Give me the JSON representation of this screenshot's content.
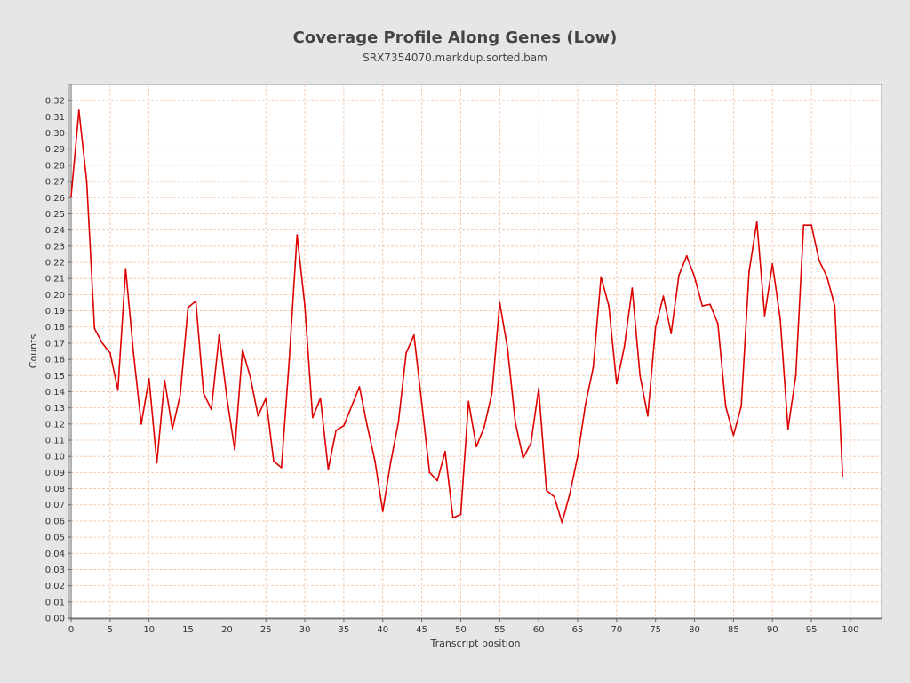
{
  "chart_data": {
    "type": "line",
    "title": "Coverage Profile Along Genes (Low)",
    "subtitle": "SRX7354070.markdup.sorted.bam",
    "xlabel": "Transcript position",
    "ylabel": "Counts",
    "xlim": [
      0,
      104
    ],
    "ylim": [
      0,
      0.33
    ],
    "x_ticks": [
      0,
      5,
      10,
      15,
      20,
      25,
      30,
      35,
      40,
      45,
      50,
      55,
      60,
      65,
      70,
      75,
      80,
      85,
      90,
      95,
      100
    ],
    "y_ticks": [
      "0.00",
      "0.01",
      "0.02",
      "0.03",
      "0.04",
      "0.05",
      "0.06",
      "0.07",
      "0.08",
      "0.09",
      "0.10",
      "0.11",
      "0.12",
      "0.13",
      "0.14",
      "0.15",
      "0.16",
      "0.17",
      "0.18",
      "0.19",
      "0.20",
      "0.21",
      "0.22",
      "0.23",
      "0.24",
      "0.25",
      "0.26",
      "0.27",
      "0.28",
      "0.29",
      "0.30",
      "0.31",
      "0.32"
    ],
    "grid": true,
    "series": [
      {
        "color": "#dd0000",
        "x": [
          0,
          1,
          2,
          3,
          4,
          5,
          6,
          7,
          8,
          9,
          10,
          11,
          12,
          13,
          14,
          15,
          16,
          17,
          18,
          19,
          20,
          21,
          22,
          23,
          24,
          25,
          26,
          27,
          28,
          29,
          30,
          31,
          32,
          33,
          34,
          35,
          36,
          37,
          38,
          39,
          40,
          41,
          42,
          43,
          44,
          45,
          46,
          47,
          48,
          49,
          50,
          51,
          52,
          53,
          54,
          55,
          56,
          57,
          58,
          59,
          60,
          61,
          62,
          63,
          64,
          65,
          66,
          67,
          68,
          69,
          70,
          71,
          72,
          73,
          74,
          75,
          76,
          77,
          78,
          79,
          80,
          81,
          82,
          83,
          84,
          85,
          86,
          87,
          88,
          89,
          90,
          91,
          92,
          93,
          94,
          95,
          96,
          97,
          98,
          99
        ],
        "values": [
          0.261,
          0.314,
          0.27,
          0.179,
          0.17,
          0.164,
          0.141,
          0.216,
          0.164,
          0.12,
          0.148,
          0.096,
          0.147,
          0.117,
          0.138,
          0.192,
          0.196,
          0.139,
          0.129,
          0.175,
          0.136,
          0.104,
          0.166,
          0.149,
          0.125,
          0.136,
          0.097,
          0.093,
          0.16,
          0.237,
          0.193,
          0.124,
          0.136,
          0.092,
          0.116,
          0.119,
          0.131,
          0.143,
          0.119,
          0.097,
          0.066,
          0.096,
          0.121,
          0.164,
          0.175,
          0.133,
          0.09,
          0.085,
          0.103,
          0.062,
          0.064,
          0.134,
          0.106,
          0.118,
          0.139,
          0.195,
          0.167,
          0.121,
          0.099,
          0.108,
          0.142,
          0.079,
          0.075,
          0.059,
          0.077,
          0.1,
          0.132,
          0.155,
          0.211,
          0.193,
          0.145,
          0.168,
          0.204,
          0.15,
          0.125,
          0.18,
          0.199,
          0.176,
          0.212,
          0.224,
          0.211,
          0.193,
          0.194,
          0.182,
          0.131,
          0.113,
          0.131,
          0.214,
          0.245,
          0.187,
          0.219,
          0.185,
          0.117,
          0.15,
          0.243,
          0.243,
          0.221,
          0.211,
          0.193,
          0.088
        ]
      }
    ]
  }
}
